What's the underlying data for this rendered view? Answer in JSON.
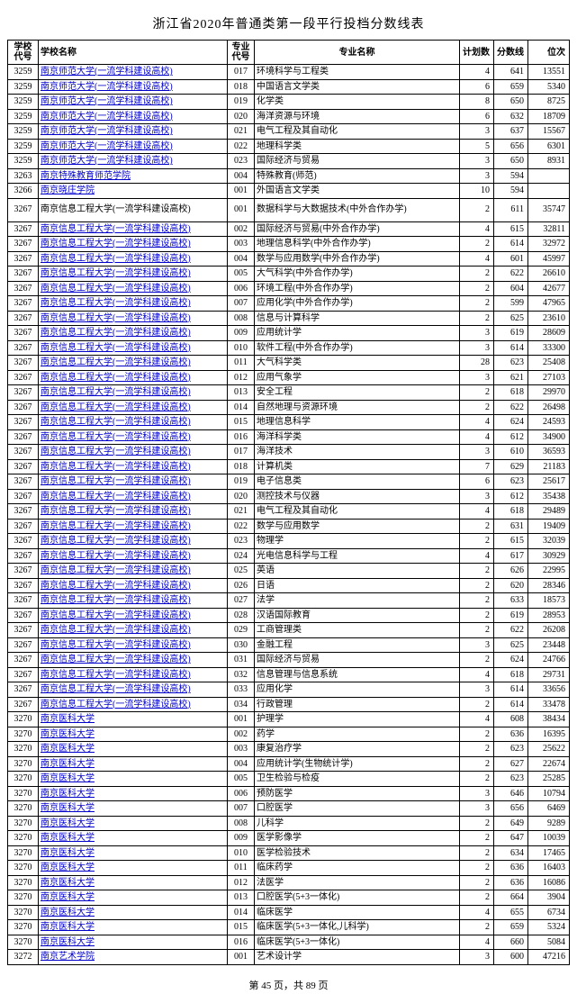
{
  "title": "浙江省2020年普通类第一段平行投档分数线表",
  "footer": "第 45 页，共 89 页",
  "columns": {
    "school_code": "学校\n代号",
    "school_name": "学校名称",
    "major_code": "专业\n代号",
    "major_name": "专业名称",
    "plan": "计划数",
    "score": "分数线",
    "rank": "位次"
  },
  "rows": [
    {
      "sc": "3259",
      "sn": "南京师范大学(一流学科建设高校)",
      "mc": "017",
      "mn": "环境科学与工程类",
      "p": "4",
      "s": "641",
      "r": "13551"
    },
    {
      "sc": "3259",
      "sn": "南京师范大学(一流学科建设高校)",
      "mc": "018",
      "mn": "中国语言文学类",
      "p": "6",
      "s": "659",
      "r": "5340"
    },
    {
      "sc": "3259",
      "sn": "南京师范大学(一流学科建设高校)",
      "mc": "019",
      "mn": "化学类",
      "p": "8",
      "s": "650",
      "r": "8725"
    },
    {
      "sc": "3259",
      "sn": "南京师范大学(一流学科建设高校)",
      "mc": "020",
      "mn": "海洋资源与环境",
      "p": "6",
      "s": "632",
      "r": "18709"
    },
    {
      "sc": "3259",
      "sn": "南京师范大学(一流学科建设高校)",
      "mc": "021",
      "mn": "电气工程及其自动化",
      "p": "3",
      "s": "637",
      "r": "15567"
    },
    {
      "sc": "3259",
      "sn": "南京师范大学(一流学科建设高校)",
      "mc": "022",
      "mn": "地理科学类",
      "p": "5",
      "s": "656",
      "r": "6301"
    },
    {
      "sc": "3259",
      "sn": "南京师范大学(一流学科建设高校)",
      "mc": "023",
      "mn": "国际经济与贸易",
      "p": "3",
      "s": "650",
      "r": "8931"
    },
    {
      "sc": "3263",
      "sn": "南京特殊教育师范学院",
      "mc": "004",
      "mn": "特殊教育(师范)",
      "p": "3",
      "s": "594",
      "r": ""
    },
    {
      "sc": "3266",
      "sn": "南京晓庄学院",
      "mc": "001",
      "mn": "外国语言文学类",
      "p": "10",
      "s": "594",
      "r": ""
    },
    {
      "sc": "3267",
      "sn": "南京信息工程大学(一流学科建设高校)",
      "mc": "001",
      "mn": "数据科学与大数据技术(中外合作办学)",
      "p": "2",
      "s": "611",
      "r": "35747",
      "tall": true,
      "nolink": true
    },
    {
      "sc": "3267",
      "sn": "南京信息工程大学(一流学科建设高校)",
      "mc": "002",
      "mn": "国际经济与贸易(中外合作办学)",
      "p": "4",
      "s": "615",
      "r": "32811"
    },
    {
      "sc": "3267",
      "sn": "南京信息工程大学(一流学科建设高校)",
      "mc": "003",
      "mn": "地理信息科学(中外合作办学)",
      "p": "2",
      "s": "614",
      "r": "32972"
    },
    {
      "sc": "3267",
      "sn": "南京信息工程大学(一流学科建设高校)",
      "mc": "004",
      "mn": "数学与应用数学(中外合作办学)",
      "p": "4",
      "s": "601",
      "r": "45997"
    },
    {
      "sc": "3267",
      "sn": "南京信息工程大学(一流学科建设高校)",
      "mc": "005",
      "mn": "大气科学(中外合作办学)",
      "p": "2",
      "s": "622",
      "r": "26610"
    },
    {
      "sc": "3267",
      "sn": "南京信息工程大学(一流学科建设高校)",
      "mc": "006",
      "mn": "环境工程(中外合作办学)",
      "p": "2",
      "s": "604",
      "r": "42677"
    },
    {
      "sc": "3267",
      "sn": "南京信息工程大学(一流学科建设高校)",
      "mc": "007",
      "mn": "应用化学(中外合作办学)",
      "p": "2",
      "s": "599",
      "r": "47965"
    },
    {
      "sc": "3267",
      "sn": "南京信息工程大学(一流学科建设高校)",
      "mc": "008",
      "mn": "信息与计算科学",
      "p": "2",
      "s": "625",
      "r": "23610"
    },
    {
      "sc": "3267",
      "sn": "南京信息工程大学(一流学科建设高校)",
      "mc": "009",
      "mn": "应用统计学",
      "p": "3",
      "s": "619",
      "r": "28609"
    },
    {
      "sc": "3267",
      "sn": "南京信息工程大学(一流学科建设高校)",
      "mc": "010",
      "mn": "软件工程(中外合作办学)",
      "p": "3",
      "s": "614",
      "r": "33300"
    },
    {
      "sc": "3267",
      "sn": "南京信息工程大学(一流学科建设高校)",
      "mc": "011",
      "mn": "大气科学类",
      "p": "28",
      "s": "623",
      "r": "25408"
    },
    {
      "sc": "3267",
      "sn": "南京信息工程大学(一流学科建设高校)",
      "mc": "012",
      "mn": "应用气象学",
      "p": "3",
      "s": "621",
      "r": "27103"
    },
    {
      "sc": "3267",
      "sn": "南京信息工程大学(一流学科建设高校)",
      "mc": "013",
      "mn": "安全工程",
      "p": "2",
      "s": "618",
      "r": "29970"
    },
    {
      "sc": "3267",
      "sn": "南京信息工程大学(一流学科建设高校)",
      "mc": "014",
      "mn": "自然地理与资源环境",
      "p": "2",
      "s": "622",
      "r": "26498"
    },
    {
      "sc": "3267",
      "sn": "南京信息工程大学(一流学科建设高校)",
      "mc": "015",
      "mn": "地理信息科学",
      "p": "4",
      "s": "624",
      "r": "24593"
    },
    {
      "sc": "3267",
      "sn": "南京信息工程大学(一流学科建设高校)",
      "mc": "016",
      "mn": "海洋科学类",
      "p": "4",
      "s": "612",
      "r": "34900"
    },
    {
      "sc": "3267",
      "sn": "南京信息工程大学(一流学科建设高校)",
      "mc": "017",
      "mn": "海洋技术",
      "p": "3",
      "s": "610",
      "r": "36593"
    },
    {
      "sc": "3267",
      "sn": "南京信息工程大学(一流学科建设高校)",
      "mc": "018",
      "mn": "计算机类",
      "p": "7",
      "s": "629",
      "r": "21183"
    },
    {
      "sc": "3267",
      "sn": "南京信息工程大学(一流学科建设高校)",
      "mc": "019",
      "mn": "电子信息类",
      "p": "6",
      "s": "623",
      "r": "25617"
    },
    {
      "sc": "3267",
      "sn": "南京信息工程大学(一流学科建设高校)",
      "mc": "020",
      "mn": "测控技术与仪器",
      "p": "3",
      "s": "612",
      "r": "35438"
    },
    {
      "sc": "3267",
      "sn": "南京信息工程大学(一流学科建设高校)",
      "mc": "021",
      "mn": "电气工程及其自动化",
      "p": "4",
      "s": "618",
      "r": "29489"
    },
    {
      "sc": "3267",
      "sn": "南京信息工程大学(一流学科建设高校)",
      "mc": "022",
      "mn": "数学与应用数学",
      "p": "2",
      "s": "631",
      "r": "19409"
    },
    {
      "sc": "3267",
      "sn": "南京信息工程大学(一流学科建设高校)",
      "mc": "023",
      "mn": "物理学",
      "p": "2",
      "s": "615",
      "r": "32039"
    },
    {
      "sc": "3267",
      "sn": "南京信息工程大学(一流学科建设高校)",
      "mc": "024",
      "mn": "光电信息科学与工程",
      "p": "4",
      "s": "617",
      "r": "30929"
    },
    {
      "sc": "3267",
      "sn": "南京信息工程大学(一流学科建设高校)",
      "mc": "025",
      "mn": "英语",
      "p": "2",
      "s": "626",
      "r": "22995"
    },
    {
      "sc": "3267",
      "sn": "南京信息工程大学(一流学科建设高校)",
      "mc": "026",
      "mn": "日语",
      "p": "2",
      "s": "620",
      "r": "28346"
    },
    {
      "sc": "3267",
      "sn": "南京信息工程大学(一流学科建设高校)",
      "mc": "027",
      "mn": "法学",
      "p": "2",
      "s": "633",
      "r": "18573"
    },
    {
      "sc": "3267",
      "sn": "南京信息工程大学(一流学科建设高校)",
      "mc": "028",
      "mn": "汉语国际教育",
      "p": "2",
      "s": "619",
      "r": "28953"
    },
    {
      "sc": "3267",
      "sn": "南京信息工程大学(一流学科建设高校)",
      "mc": "029",
      "mn": "工商管理类",
      "p": "2",
      "s": "622",
      "r": "26208"
    },
    {
      "sc": "3267",
      "sn": "南京信息工程大学(一流学科建设高校)",
      "mc": "030",
      "mn": "金融工程",
      "p": "3",
      "s": "625",
      "r": "23448"
    },
    {
      "sc": "3267",
      "sn": "南京信息工程大学(一流学科建设高校)",
      "mc": "031",
      "mn": "国际经济与贸易",
      "p": "2",
      "s": "624",
      "r": "24766"
    },
    {
      "sc": "3267",
      "sn": "南京信息工程大学(一流学科建设高校)",
      "mc": "032",
      "mn": "信息管理与信息系统",
      "p": "4",
      "s": "618",
      "r": "29731"
    },
    {
      "sc": "3267",
      "sn": "南京信息工程大学(一流学科建设高校)",
      "mc": "033",
      "mn": "应用化学",
      "p": "3",
      "s": "614",
      "r": "33656"
    },
    {
      "sc": "3267",
      "sn": "南京信息工程大学(一流学科建设高校)",
      "mc": "034",
      "mn": "行政管理",
      "p": "2",
      "s": "614",
      "r": "33478"
    },
    {
      "sc": "3270",
      "sn": "南京医科大学",
      "mc": "001",
      "mn": "护理学",
      "p": "4",
      "s": "608",
      "r": "38434"
    },
    {
      "sc": "3270",
      "sn": "南京医科大学",
      "mc": "002",
      "mn": "药学",
      "p": "2",
      "s": "636",
      "r": "16395"
    },
    {
      "sc": "3270",
      "sn": "南京医科大学",
      "mc": "003",
      "mn": "康复治疗学",
      "p": "2",
      "s": "623",
      "r": "25622"
    },
    {
      "sc": "3270",
      "sn": "南京医科大学",
      "mc": "004",
      "mn": "应用统计学(生物统计学)",
      "p": "2",
      "s": "627",
      "r": "22674"
    },
    {
      "sc": "3270",
      "sn": "南京医科大学",
      "mc": "005",
      "mn": "卫生检验与检疫",
      "p": "2",
      "s": "623",
      "r": "25285"
    },
    {
      "sc": "3270",
      "sn": "南京医科大学",
      "mc": "006",
      "mn": "预防医学",
      "p": "3",
      "s": "646",
      "r": "10794"
    },
    {
      "sc": "3270",
      "sn": "南京医科大学",
      "mc": "007",
      "mn": "口腔医学",
      "p": "3",
      "s": "656",
      "r": "6469"
    },
    {
      "sc": "3270",
      "sn": "南京医科大学",
      "mc": "008",
      "mn": "儿科学",
      "p": "2",
      "s": "649",
      "r": "9289"
    },
    {
      "sc": "3270",
      "sn": "南京医科大学",
      "mc": "009",
      "mn": "医学影像学",
      "p": "2",
      "s": "647",
      "r": "10039"
    },
    {
      "sc": "3270",
      "sn": "南京医科大学",
      "mc": "010",
      "mn": "医学检验技术",
      "p": "2",
      "s": "634",
      "r": "17465"
    },
    {
      "sc": "3270",
      "sn": "南京医科大学",
      "mc": "011",
      "mn": "临床药学",
      "p": "2",
      "s": "636",
      "r": "16403"
    },
    {
      "sc": "3270",
      "sn": "南京医科大学",
      "mc": "012",
      "mn": "法医学",
      "p": "2",
      "s": "636",
      "r": "16086"
    },
    {
      "sc": "3270",
      "sn": "南京医科大学",
      "mc": "013",
      "mn": "口腔医学(5+3一体化)",
      "p": "2",
      "s": "664",
      "r": "3904"
    },
    {
      "sc": "3270",
      "sn": "南京医科大学",
      "mc": "014",
      "mn": "临床医学",
      "p": "4",
      "s": "655",
      "r": "6734"
    },
    {
      "sc": "3270",
      "sn": "南京医科大学",
      "mc": "015",
      "mn": "临床医学(5+3一体化,儿科学)",
      "p": "2",
      "s": "659",
      "r": "5324"
    },
    {
      "sc": "3270",
      "sn": "南京医科大学",
      "mc": "016",
      "mn": "临床医学(5+3一体化)",
      "p": "4",
      "s": "660",
      "r": "5084"
    },
    {
      "sc": "3272",
      "sn": "南京艺术学院",
      "mc": "001",
      "mn": "艺术设计学",
      "p": "3",
      "s": "600",
      "r": "47216"
    }
  ]
}
